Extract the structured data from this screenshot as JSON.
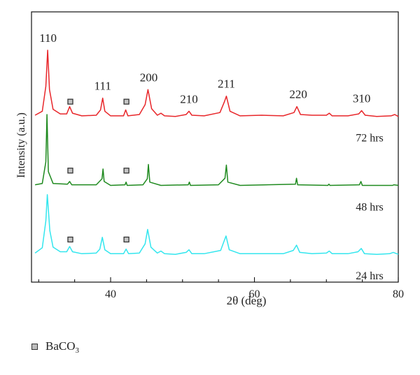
{
  "chart_data": {
    "type": "line",
    "xlabel": "2θ (deg)",
    "ylabel": "Intensity (a.u.)",
    "xlim": [
      29,
      80
    ],
    "xticks": [
      40,
      60,
      80
    ],
    "grid": false,
    "series": [
      {
        "name": "72 hrs",
        "color": "#e8262a",
        "offset": 2.1,
        "points": [
          [
            29.5,
            0.06
          ],
          [
            30.5,
            0.12
          ],
          [
            31.0,
            0.5
          ],
          [
            31.25,
            1.05
          ],
          [
            31.5,
            0.45
          ],
          [
            32.0,
            0.15
          ],
          [
            33.0,
            0.08
          ],
          [
            33.9,
            0.08
          ],
          [
            34.3,
            0.19
          ],
          [
            34.7,
            0.09
          ],
          [
            36.0,
            0.05
          ],
          [
            38.0,
            0.06
          ],
          [
            38.6,
            0.14
          ],
          [
            38.9,
            0.32
          ],
          [
            39.2,
            0.12
          ],
          [
            40.0,
            0.05
          ],
          [
            41.8,
            0.05
          ],
          [
            42.1,
            0.14
          ],
          [
            42.4,
            0.05
          ],
          [
            44.0,
            0.07
          ],
          [
            44.8,
            0.22
          ],
          [
            45.2,
            0.45
          ],
          [
            45.7,
            0.16
          ],
          [
            46.5,
            0.06
          ],
          [
            47.0,
            0.09
          ],
          [
            47.5,
            0.05
          ],
          [
            49.0,
            0.04
          ],
          [
            50.5,
            0.07
          ],
          [
            50.9,
            0.12
          ],
          [
            51.3,
            0.06
          ],
          [
            53.0,
            0.05
          ],
          [
            55.2,
            0.1
          ],
          [
            55.8,
            0.26
          ],
          [
            56.1,
            0.35
          ],
          [
            56.6,
            0.12
          ],
          [
            58.0,
            0.05
          ],
          [
            61.0,
            0.06
          ],
          [
            64.0,
            0.05
          ],
          [
            65.5,
            0.1
          ],
          [
            65.9,
            0.19
          ],
          [
            66.4,
            0.07
          ],
          [
            68.0,
            0.06
          ],
          [
            70.0,
            0.06
          ],
          [
            70.4,
            0.09
          ],
          [
            70.8,
            0.05
          ],
          [
            73.0,
            0.05
          ],
          [
            74.5,
            0.08
          ],
          [
            74.9,
            0.13
          ],
          [
            75.4,
            0.06
          ],
          [
            77.0,
            0.04
          ],
          [
            79.0,
            0.05
          ],
          [
            79.5,
            0.07
          ],
          [
            80.0,
            0.04
          ]
        ]
      },
      {
        "name": "48 hrs",
        "color": "#1f8a1f",
        "offset": 1.05,
        "points": [
          [
            29.5,
            0.05
          ],
          [
            30.5,
            0.07
          ],
          [
            31.0,
            0.4
          ],
          [
            31.15,
            1.12
          ],
          [
            31.35,
            0.25
          ],
          [
            32.0,
            0.07
          ],
          [
            34.0,
            0.06
          ],
          [
            34.3,
            0.1
          ],
          [
            34.6,
            0.05
          ],
          [
            38.0,
            0.05
          ],
          [
            38.8,
            0.14
          ],
          [
            38.95,
            0.29
          ],
          [
            39.1,
            0.1
          ],
          [
            40.0,
            0.04
          ],
          [
            42.0,
            0.05
          ],
          [
            42.15,
            0.09
          ],
          [
            42.3,
            0.04
          ],
          [
            44.5,
            0.05
          ],
          [
            45.1,
            0.14
          ],
          [
            45.25,
            0.36
          ],
          [
            45.45,
            0.09
          ],
          [
            47.0,
            0.04
          ],
          [
            50.8,
            0.05
          ],
          [
            50.95,
            0.09
          ],
          [
            51.1,
            0.04
          ],
          [
            55.0,
            0.05
          ],
          [
            55.9,
            0.15
          ],
          [
            56.1,
            0.35
          ],
          [
            56.3,
            0.09
          ],
          [
            58.0,
            0.04
          ],
          [
            65.7,
            0.06
          ],
          [
            65.85,
            0.15
          ],
          [
            66.0,
            0.05
          ],
          [
            70.2,
            0.04
          ],
          [
            70.35,
            0.06
          ],
          [
            70.5,
            0.04
          ],
          [
            74.6,
            0.05
          ],
          [
            74.8,
            0.1
          ],
          [
            75.0,
            0.04
          ],
          [
            79.2,
            0.04
          ],
          [
            79.4,
            0.05
          ],
          [
            80.0,
            0.04
          ]
        ]
      },
      {
        "name": "24 hrs",
        "color": "#33e6ee",
        "offset": 0,
        "points": [
          [
            29.5,
            0.06
          ],
          [
            30.5,
            0.14
          ],
          [
            31.0,
            0.55
          ],
          [
            31.2,
            0.95
          ],
          [
            31.55,
            0.4
          ],
          [
            32.0,
            0.15
          ],
          [
            33.0,
            0.08
          ],
          [
            33.9,
            0.08
          ],
          [
            34.3,
            0.16
          ],
          [
            34.7,
            0.08
          ],
          [
            36.0,
            0.05
          ],
          [
            38.0,
            0.06
          ],
          [
            38.5,
            0.12
          ],
          [
            38.85,
            0.3
          ],
          [
            39.2,
            0.11
          ],
          [
            40.0,
            0.05
          ],
          [
            41.8,
            0.05
          ],
          [
            42.15,
            0.12
          ],
          [
            42.5,
            0.05
          ],
          [
            44.0,
            0.06
          ],
          [
            44.8,
            0.2
          ],
          [
            45.15,
            0.42
          ],
          [
            45.6,
            0.15
          ],
          [
            46.5,
            0.06
          ],
          [
            47.0,
            0.09
          ],
          [
            47.5,
            0.05
          ],
          [
            49.0,
            0.04
          ],
          [
            50.5,
            0.07
          ],
          [
            50.9,
            0.11
          ],
          [
            51.3,
            0.05
          ],
          [
            53.0,
            0.05
          ],
          [
            55.3,
            0.1
          ],
          [
            55.8,
            0.25
          ],
          [
            56.05,
            0.32
          ],
          [
            56.5,
            0.11
          ],
          [
            58.0,
            0.05
          ],
          [
            61.0,
            0.05
          ],
          [
            64.0,
            0.05
          ],
          [
            65.4,
            0.1
          ],
          [
            65.85,
            0.18
          ],
          [
            66.3,
            0.07
          ],
          [
            68.0,
            0.05
          ],
          [
            70.0,
            0.06
          ],
          [
            70.4,
            0.09
          ],
          [
            70.8,
            0.05
          ],
          [
            73.0,
            0.05
          ],
          [
            74.4,
            0.08
          ],
          [
            74.85,
            0.13
          ],
          [
            75.3,
            0.05
          ],
          [
            77.0,
            0.04
          ],
          [
            78.8,
            0.05
          ],
          [
            79.3,
            0.07
          ],
          [
            80.0,
            0.04
          ]
        ]
      }
    ],
    "peak_labels": [
      {
        "text": "110",
        "x": 31.3
      },
      {
        "text": "111",
        "x": 38.9
      },
      {
        "text": "200",
        "x": 45.3
      },
      {
        "text": "210",
        "x": 50.9
      },
      {
        "text": "211",
        "x": 56.1
      },
      {
        "text": "220",
        "x": 66.1
      },
      {
        "text": "310",
        "x": 74.9
      }
    ],
    "impurity_markers": {
      "label": "BaCO3",
      "x": [
        34.4,
        42.2
      ]
    },
    "legend": {
      "marker_label": "BaCO",
      "marker_label_sub": "3",
      "position": "bottom-left"
    }
  }
}
